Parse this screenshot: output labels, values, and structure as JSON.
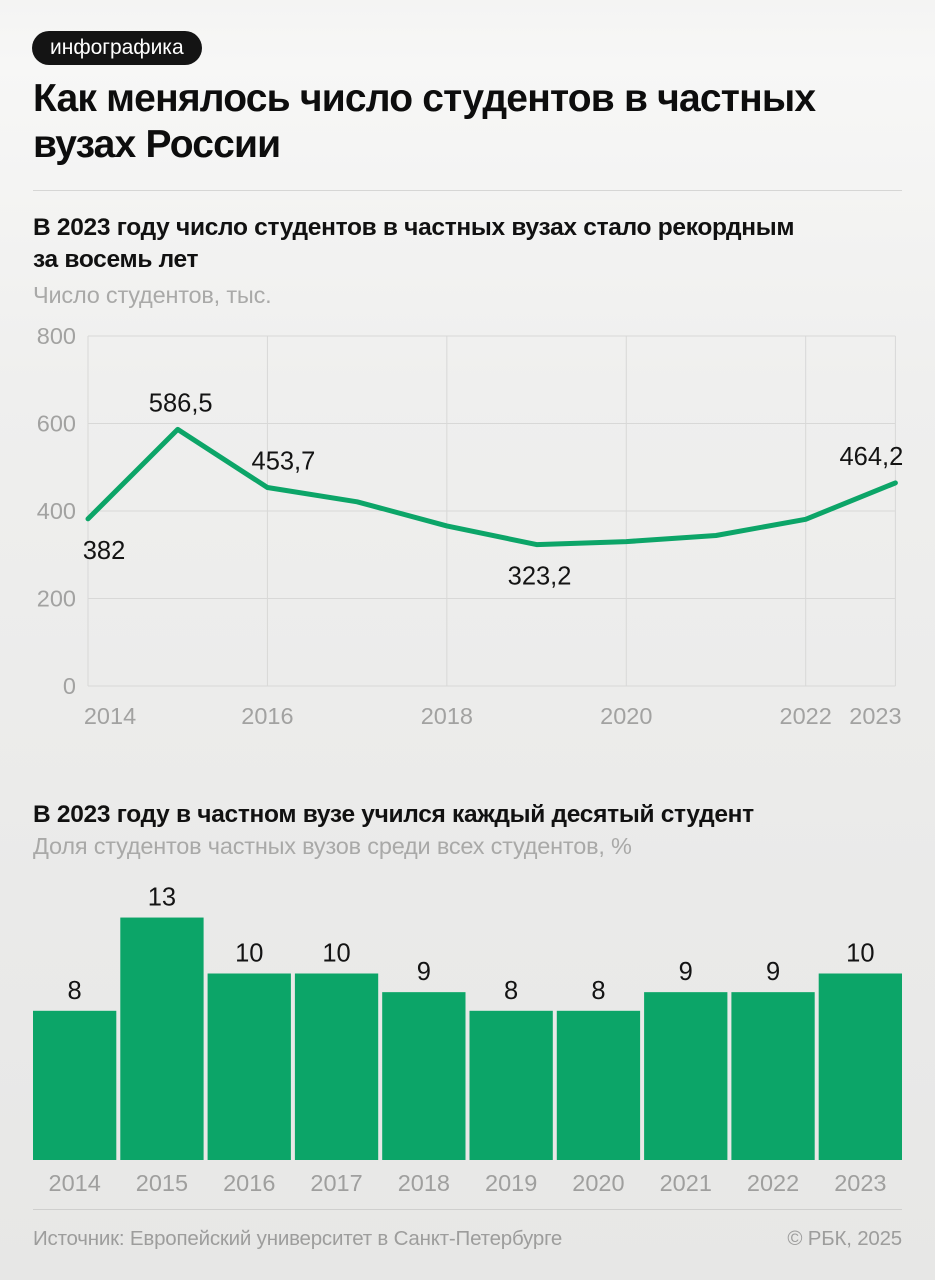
{
  "badge": "инфографика",
  "title": "Как менялось число студентов в частных\nвузах России",
  "accent_color": "#0ca568",
  "section1": {
    "heading": "В 2023 году число студентов в частных вузах стало рекордным\nза восемь лет",
    "unit_label": "Число студентов, тыс."
  },
  "section2": {
    "heading": "В 2023 году в частном вузе учился каждый десятый студент",
    "unit_label": "Доля студентов частных вузов среди всех студентов, %"
  },
  "footer": {
    "source": "Источник: Европейский университет в Санкт-Петербурге",
    "copyright": "© РБК, 2025"
  },
  "chart_data": [
    {
      "type": "line",
      "title": "В 2023 году число студентов в частных вузах стало рекордным за восемь лет",
      "ylabel": "Число студентов, тыс.",
      "x": [
        2014,
        2015,
        2016,
        2017,
        2018,
        2019,
        2020,
        2021,
        2022,
        2023
      ],
      "values": [
        382,
        586.5,
        453.7,
        421,
        366,
        323.2,
        330,
        344,
        381,
        464.2
      ],
      "point_labels": [
        "382",
        "586,5",
        "453,7",
        "",
        "",
        "323,2",
        "",
        "",
        "",
        "464,2"
      ],
      "label_side": [
        "below",
        "above",
        "above",
        "",
        "",
        "below",
        "",
        "",
        "",
        "above"
      ],
      "ylim": [
        0,
        800
      ],
      "yticks": [
        0,
        200,
        400,
        600,
        800
      ],
      "xticks": [
        2014,
        2016,
        2018,
        2020,
        2022,
        2023
      ],
      "grid": true,
      "line_color": "#0ca568",
      "grid_color": "#d8d8d7",
      "tick_color": "#a2a2a1",
      "label_color": "#141414",
      "legend": "none"
    },
    {
      "type": "bar",
      "title": "В 2023 году в частном вузе учился каждый десятый студент",
      "ylabel": "Доля студентов частных вузов среди всех студентов, %",
      "categories": [
        "2014",
        "2015",
        "2016",
        "2017",
        "2018",
        "2019",
        "2020",
        "2021",
        "2022",
        "2023"
      ],
      "values": [
        8,
        13,
        10,
        10,
        9,
        8,
        8,
        9,
        9,
        10
      ],
      "bar_color": "#0ca568",
      "tick_color": "#9f9f9e",
      "label_color": "#141414",
      "ylim": [
        0,
        14
      ],
      "grid": false,
      "legend": "none"
    }
  ]
}
